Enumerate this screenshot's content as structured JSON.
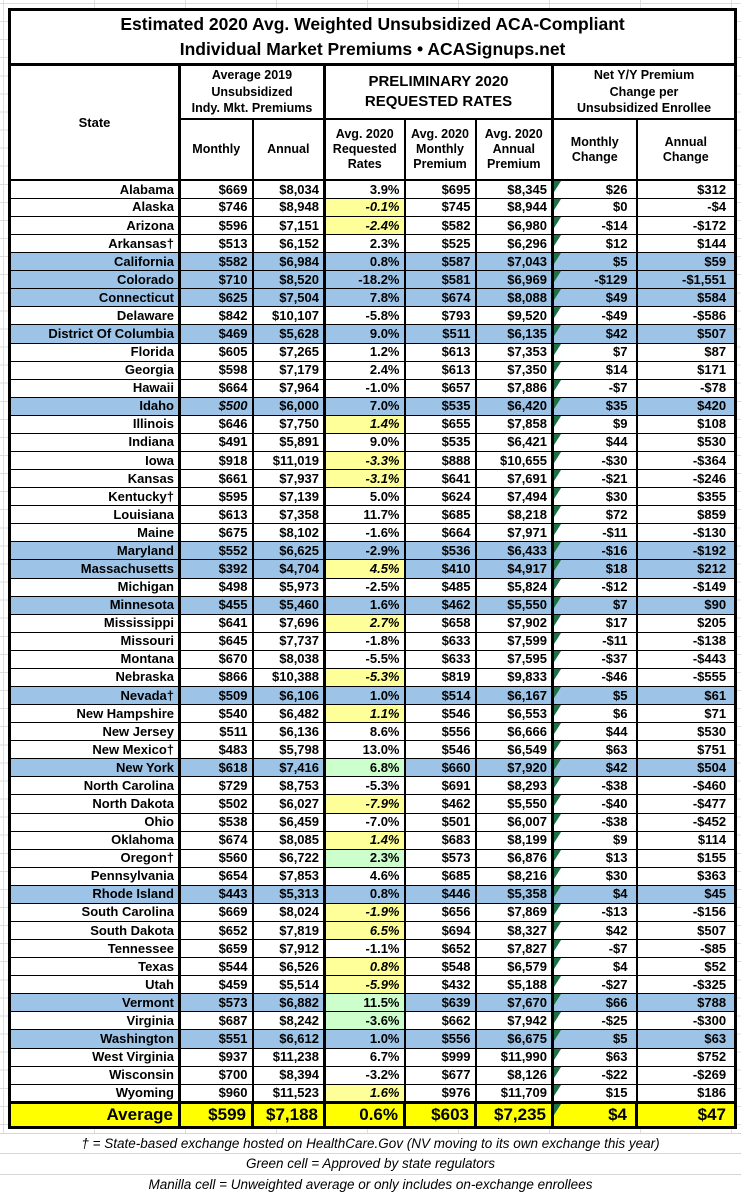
{
  "title": {
    "line1": "Estimated 2020 Avg. Weighted Unsubsidized ACA-Compliant",
    "line2": "Individual Market Premiums • ACASignups.net"
  },
  "header": {
    "state": "State",
    "group_2019": "Average 2019\nUnsubsidized\nIndy. Mkt. Premiums",
    "group_2020": "PRELIMINARY 2020\nREQUESTED RATES",
    "group_change": "Net Y/Y Premium\nChange per\nUnsubsidized Enrollee",
    "sub": [
      "Monthly",
      "Annual",
      "Avg. 2020\nRequested\nRates",
      "Avg. 2020\nMonthly\nPremium",
      "Avg. 2020\nAnnual\nPremium",
      "Monthly\nChange",
      "Annual\nChange"
    ]
  },
  "legend_colors": {
    "state_based_exchange_row_blue": "#9DC3E6",
    "manilla_cell": "#FFFF99",
    "green_cell": "#CCFFCC",
    "average_row_yellow": "#FFFF00",
    "flag_triangle_green": "#1E7145"
  },
  "rows": [
    {
      "state": "Alabama",
      "values": [
        "$669",
        "$8,034",
        "3.9%",
        "$695",
        "$8,345",
        "$26",
        "$312"
      ]
    },
    {
      "state": "Alaska",
      "values": [
        "$746",
        "$8,948",
        "-0.1%",
        "$745",
        "$8,944",
        "$0",
        "-$4"
      ],
      "rate": "y"
    },
    {
      "state": "Arizona",
      "values": [
        "$596",
        "$7,151",
        "-2.4%",
        "$582",
        "$6,980",
        "-$14",
        "-$172"
      ],
      "rate": "y"
    },
    {
      "state": "Arkansas†",
      "values": [
        "$513",
        "$6,152",
        "2.3%",
        "$525",
        "$6,296",
        "$12",
        "$144"
      ]
    },
    {
      "state": "California",
      "values": [
        "$582",
        "$6,984",
        "0.8%",
        "$587",
        "$7,043",
        "$5",
        "$59"
      ],
      "blue": true
    },
    {
      "state": "Colorado",
      "values": [
        "$710",
        "$8,520",
        "-18.2%",
        "$581",
        "$6,969",
        "-$129",
        "-$1,551"
      ],
      "blue": true
    },
    {
      "state": "Connecticut",
      "values": [
        "$625",
        "$7,504",
        "7.8%",
        "$674",
        "$8,088",
        "$49",
        "$584"
      ],
      "blue": true
    },
    {
      "state": "Delaware",
      "values": [
        "$842",
        "$10,107",
        "-5.8%",
        "$793",
        "$9,520",
        "-$49",
        "-$586"
      ]
    },
    {
      "state": "District Of Columbia",
      "values": [
        "$469",
        "$5,628",
        "9.0%",
        "$511",
        "$6,135",
        "$42",
        "$507"
      ],
      "blue": true
    },
    {
      "state": "Florida",
      "values": [
        "$605",
        "$7,265",
        "1.2%",
        "$613",
        "$7,353",
        "$7",
        "$87"
      ]
    },
    {
      "state": "Georgia",
      "values": [
        "$598",
        "$7,179",
        "2.4%",
        "$613",
        "$7,350",
        "$14",
        "$171"
      ]
    },
    {
      "state": "Hawaii",
      "values": [
        "$664",
        "$7,964",
        "-1.0%",
        "$657",
        "$7,886",
        "-$7",
        "-$78"
      ]
    },
    {
      "state": "Idaho",
      "values": [
        "$500",
        "$6,000",
        "7.0%",
        "$535",
        "$6,420",
        "$35",
        "$420"
      ],
      "blue": true,
      "styles": {
        "0": "il"
      }
    },
    {
      "state": "Illinois",
      "values": [
        "$646",
        "$7,750",
        "1.4%",
        "$655",
        "$7,858",
        "$9",
        "$108"
      ],
      "rate": "y"
    },
    {
      "state": "Indiana",
      "values": [
        "$491",
        "$5,891",
        "9.0%",
        "$535",
        "$6,421",
        "$44",
        "$530"
      ]
    },
    {
      "state": "Iowa",
      "values": [
        "$918",
        "$11,019",
        "-3.3%",
        "$888",
        "$10,655",
        "-$30",
        "-$364"
      ],
      "rate": "y"
    },
    {
      "state": "Kansas",
      "values": [
        "$661",
        "$7,937",
        "-3.1%",
        "$641",
        "$7,691",
        "-$21",
        "-$246"
      ],
      "rate": "y"
    },
    {
      "state": "Kentucky†",
      "values": [
        "$595",
        "$7,139",
        "5.0%",
        "$624",
        "$7,494",
        "$30",
        "$355"
      ]
    },
    {
      "state": "Louisiana",
      "values": [
        "$613",
        "$7,358",
        "11.7%",
        "$685",
        "$8,218",
        "$72",
        "$859"
      ]
    },
    {
      "state": "Maine",
      "values": [
        "$675",
        "$8,102",
        "-1.6%",
        "$664",
        "$7,971",
        "-$11",
        "-$130"
      ]
    },
    {
      "state": "Maryland",
      "values": [
        "$552",
        "$6,625",
        "-2.9%",
        "$536",
        "$6,433",
        "-$16",
        "-$192"
      ],
      "blue": true
    },
    {
      "state": "Massachusetts",
      "values": [
        "$392",
        "$4,704",
        "4.5%",
        "$410",
        "$4,917",
        "$18",
        "$212"
      ],
      "blue": true,
      "rate": "y"
    },
    {
      "state": "Michigan",
      "values": [
        "$498",
        "$5,973",
        "-2.5%",
        "$485",
        "$5,824",
        "-$12",
        "-$149"
      ]
    },
    {
      "state": "Minnesota",
      "values": [
        "$455",
        "$5,460",
        "1.6%",
        "$462",
        "$5,550",
        "$7",
        "$90"
      ],
      "blue": true,
      "styles": {
        "5": "lt"
      }
    },
    {
      "state": "Mississippi",
      "values": [
        "$641",
        "$7,696",
        "2.7%",
        "$658",
        "$7,902",
        "$17",
        "$205"
      ],
      "rate": "y",
      "styles": {
        "3": "lt"
      }
    },
    {
      "state": "Missouri",
      "values": [
        "$645",
        "$7,737",
        "-1.8%",
        "$633",
        "$7,599",
        "-$11",
        "-$138"
      ]
    },
    {
      "state": "Montana",
      "values": [
        "$670",
        "$8,038",
        "-5.5%",
        "$633",
        "$7,595",
        "-$37",
        "-$443"
      ]
    },
    {
      "state": "Nebraska",
      "values": [
        "$866",
        "$10,388",
        "-5.3%",
        "$819",
        "$9,833",
        "-$46",
        "-$555"
      ],
      "rate": "y"
    },
    {
      "state": "Nevada†",
      "values": [
        "$509",
        "$6,106",
        "1.0%",
        "$514",
        "$6,167",
        "$5",
        "$61"
      ],
      "blue": true
    },
    {
      "state": "New Hampshire",
      "values": [
        "$540",
        "$6,482",
        "1.1%",
        "$546",
        "$6,553",
        "$6",
        "$71"
      ],
      "rate": "y"
    },
    {
      "state": "New Jersey",
      "values": [
        "$511",
        "$6,136",
        "8.6%",
        "$556",
        "$6,666",
        "$44",
        "$530"
      ]
    },
    {
      "state": "New Mexico†",
      "values": [
        "$483",
        "$5,798",
        "13.0%",
        "$546",
        "$6,549",
        "$63",
        "$751"
      ]
    },
    {
      "state": "New York",
      "values": [
        "$618",
        "$7,416",
        "6.8%",
        "$660",
        "$7,920",
        "$42",
        "$504"
      ],
      "blue": true,
      "rate": "g"
    },
    {
      "state": "North Carolina",
      "values": [
        "$729",
        "$8,753",
        "-5.3%",
        "$691",
        "$8,293",
        "-$38",
        "-$460"
      ]
    },
    {
      "state": "North Dakota",
      "values": [
        "$502",
        "$6,027",
        "-7.9%",
        "$462",
        "$5,550",
        "-$40",
        "-$477"
      ],
      "rate": "y"
    },
    {
      "state": "Ohio",
      "values": [
        "$538",
        "$6,459",
        "-7.0%",
        "$501",
        "$6,007",
        "-$38",
        "-$452"
      ]
    },
    {
      "state": "Oklahoma",
      "values": [
        "$674",
        "$8,085",
        "1.4%",
        "$683",
        "$8,199",
        "$9",
        "$114"
      ],
      "rate": "y"
    },
    {
      "state": "Oregon†",
      "values": [
        "$560",
        "$6,722",
        "2.3%",
        "$573",
        "$6,876",
        "$13",
        "$155"
      ],
      "rate": "g"
    },
    {
      "state": "Pennsylvania",
      "values": [
        "$654",
        "$7,853",
        "4.6%",
        "$685",
        "$8,216",
        "$30",
        "$363"
      ]
    },
    {
      "state": "Rhode Island",
      "values": [
        "$443",
        "$5,313",
        "0.8%",
        "$446",
        "$5,358",
        "$4",
        "$45"
      ],
      "blue": true
    },
    {
      "state": "South Carolina",
      "values": [
        "$669",
        "$8,024",
        "-1.9%",
        "$656",
        "$7,869",
        "-$13",
        "-$156"
      ],
      "rate": "y"
    },
    {
      "state": "South Dakota",
      "values": [
        "$652",
        "$7,819",
        "6.5%",
        "$694",
        "$8,327",
        "$42",
        "$507"
      ],
      "rate": "y"
    },
    {
      "state": "Tennessee",
      "values": [
        "$659",
        "$7,912",
        "-1.1%",
        "$652",
        "$7,827",
        "-$7",
        "-$85"
      ]
    },
    {
      "state": "Texas",
      "values": [
        "$544",
        "$6,526",
        "0.8%",
        "$548",
        "$6,579",
        "$4",
        "$52"
      ],
      "rate": "y"
    },
    {
      "state": "Utah",
      "values": [
        "$459",
        "$5,514",
        "-5.9%",
        "$432",
        "$5,188",
        "-$27",
        "-$325"
      ],
      "rate": "y"
    },
    {
      "state": "Vermont",
      "values": [
        "$573",
        "$6,882",
        "11.5%",
        "$639",
        "$7,670",
        "$66",
        "$788"
      ],
      "blue": true,
      "rate": "g"
    },
    {
      "state": "Virginia",
      "values": [
        "$687",
        "$8,242",
        "-3.6%",
        "$662",
        "$7,942",
        "-$25",
        "-$300"
      ],
      "rate": "g"
    },
    {
      "state": "Washington",
      "values": [
        "$551",
        "$6,612",
        "1.0%",
        "$556",
        "$6,675",
        "$5",
        "$63"
      ],
      "blue": true
    },
    {
      "state": "West Virginia",
      "values": [
        "$937",
        "$11,238",
        "6.7%",
        "$999",
        "$11,990",
        "$63",
        "$752"
      ]
    },
    {
      "state": "Wisconsin",
      "values": [
        "$700",
        "$8,394",
        "-3.2%",
        "$677",
        "$8,126",
        "-$22",
        "-$269"
      ]
    },
    {
      "state": "Wyoming",
      "values": [
        "$960",
        "$11,523",
        "1.6%",
        "$976",
        "$11,709",
        "$15",
        "$186"
      ],
      "rate": "y"
    }
  ],
  "average": {
    "label": "Average",
    "values": [
      "$599",
      "$7,188",
      "0.6%",
      "$603",
      "$7,235",
      "$4",
      "$47"
    ]
  },
  "notes": [
    "† = State-based exchange hosted on HealthCare.Gov (NV moving to its own exchange this year)",
    "Green cell = Approved by state regulators",
    "Manilla cell = Unweighted average or only includes on-exchange enrollees"
  ]
}
